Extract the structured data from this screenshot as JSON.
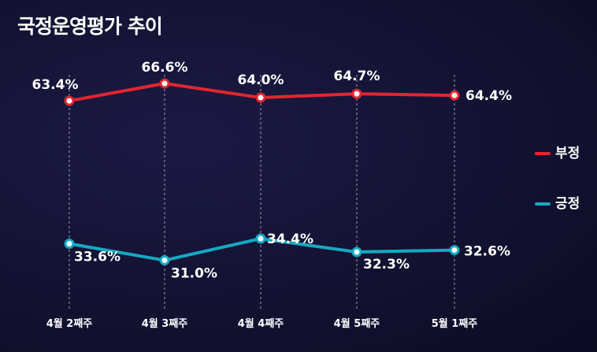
{
  "title": "국정운영평가 추이",
  "colors": {
    "negative": "#e2262f",
    "positive": "#16a9c2",
    "background": "#141333"
  },
  "legend": {
    "negative": "부정",
    "positive": "긍정"
  },
  "chart_data": {
    "type": "line",
    "title": "국정운영평가 추이",
    "categories": [
      "4월 2째주",
      "4월 3째주",
      "4월 4째주",
      "4월 5째주",
      "5월 1째주"
    ],
    "series": [
      {
        "name": "부정",
        "values": [
          63.4,
          66.6,
          64.0,
          64.7,
          64.4
        ],
        "labels": [
          "63.4%",
          "66.6%",
          "64.0%",
          "64.7%",
          "64.4%"
        ]
      },
      {
        "name": "긍정",
        "values": [
          33.6,
          31.0,
          34.4,
          32.3,
          32.6
        ],
        "labels": [
          "33.6%",
          "31.0%",
          "34.4%",
          "32.3%",
          "32.6%"
        ]
      }
    ],
    "grid": "vertical dashed lines at each category",
    "legend_position": "right"
  }
}
